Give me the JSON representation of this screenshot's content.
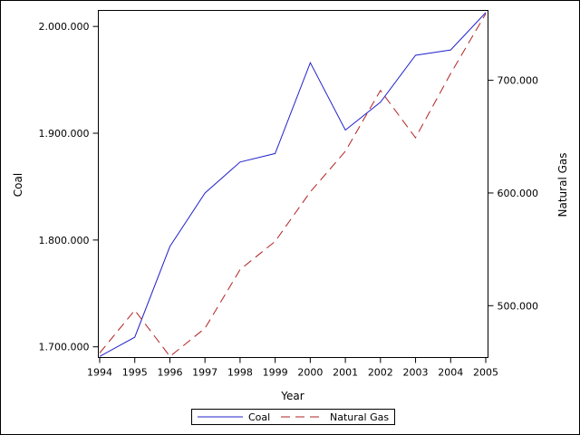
{
  "chart_data": {
    "type": "line",
    "x": [
      1994,
      1995,
      1996,
      1997,
      1998,
      1999,
      2000,
      2001,
      2002,
      2003,
      2004,
      2005
    ],
    "xlabel": "Year",
    "xlim": [
      1994,
      2005
    ],
    "y_left": {
      "label": "Coal",
      "lim": [
        1690000,
        2015000
      ],
      "ticks": [
        1700000,
        1800000,
        1900000,
        2000000
      ],
      "tick_labels": [
        "1.700.000",
        "1.800.000",
        "1.900.000",
        "2.000.000"
      ]
    },
    "y_right": {
      "label": "Natural Gas",
      "lim": [
        454000,
        762000
      ],
      "ticks": [
        500000,
        600000,
        700000
      ],
      "tick_labels": [
        "500.000",
        "600.000",
        "700.000"
      ]
    },
    "series": [
      {
        "name": "Coal",
        "axis": "left",
        "color": "#2222cc",
        "dash": "solid",
        "values": [
          1691000,
          1709000,
          1794000,
          1844000,
          1873000,
          1881000,
          1966000,
          1903000,
          1929000,
          1973000,
          1978000,
          2013000
        ]
      },
      {
        "name": "Natural Gas",
        "axis": "right",
        "color": "#b22222",
        "dash": "dashed",
        "values": [
          458000,
          496000,
          455000,
          480000,
          532000,
          557000,
          601000,
          637000,
          691000,
          649000,
          706000,
          759000
        ]
      }
    ],
    "grid": false,
    "legend_position": "bottom-center"
  }
}
